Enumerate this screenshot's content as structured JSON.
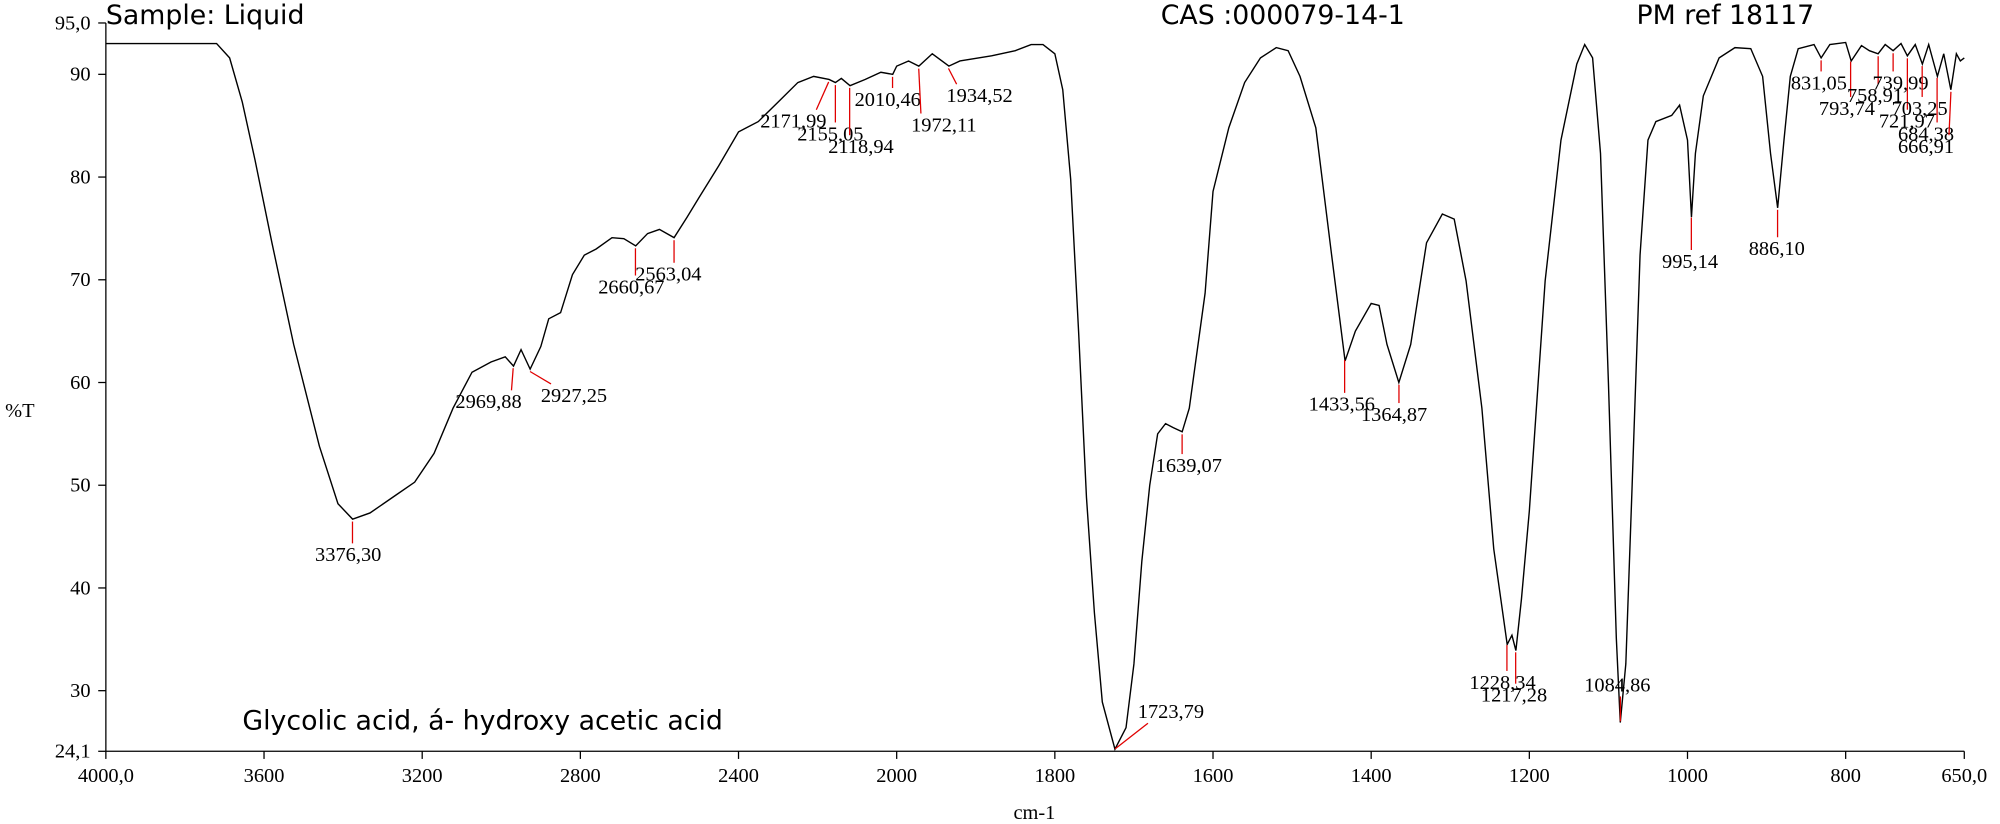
{
  "chart_data": {
    "type": "line",
    "sample": "Sample: Liquid",
    "cas": "CAS :000079-14-1",
    "ref": "PM ref 18117",
    "title": "Glycolic acid, á- hydroxy acetic acid",
    "xlabel": "cm-1",
    "ylabel": "%T",
    "xlim": [
      4000,
      650
    ],
    "x_scale_change": {
      "at": 2000,
      "ratio": 2
    },
    "xticks": [
      {
        "value": 4000,
        "label": "4000,0"
      },
      3600,
      3200,
      2800,
      2400,
      2000,
      1800,
      1600,
      1400,
      1200,
      1000,
      800,
      {
        "value": 650,
        "label": "650,0"
      }
    ],
    "ylim": [
      24.1,
      95
    ],
    "yticks": [
      {
        "value": 24.1,
        "label": "24,1"
      },
      30,
      40,
      50,
      60,
      70,
      80,
      90,
      {
        "value": 95,
        "label": "95,0"
      }
    ],
    "color": "#000000",
    "peak_color": "#e00000",
    "x": [
      4000,
      3720,
      3687,
      3655,
      3623,
      3580,
      3525,
      3460,
      3413,
      3376,
      3332,
      3268,
      3219,
      3170,
      3122,
      3074,
      3026,
      2990,
      2969,
      2950,
      2927,
      2900,
      2880,
      2850,
      2820,
      2790,
      2760,
      2720,
      2690,
      2660,
      2630,
      2600,
      2563,
      2530,
      2500,
      2450,
      2400,
      2350,
      2300,
      2250,
      2210,
      2171,
      2155,
      2140,
      2118,
      2080,
      2040,
      2010,
      2000,
      1985,
      1972,
      1955,
      1934,
      1920,
      1880,
      1850,
      1830,
      1815,
      1800,
      1790,
      1780,
      1770,
      1760,
      1750,
      1740,
      1724,
      1710,
      1700,
      1690,
      1680,
      1670,
      1660,
      1650,
      1639,
      1630,
      1610,
      1600,
      1580,
      1560,
      1540,
      1520,
      1505,
      1490,
      1470,
      1450,
      1433,
      1420,
      1400,
      1390,
      1380,
      1365,
      1350,
      1330,
      1310,
      1295,
      1280,
      1260,
      1245,
      1228,
      1222,
      1217,
      1210,
      1200,
      1180,
      1160,
      1140,
      1130,
      1120,
      1110,
      1100,
      1090,
      1085,
      1078,
      1070,
      1060,
      1050,
      1040,
      1020,
      1010,
      1000,
      995,
      990,
      980,
      960,
      940,
      920,
      905,
      895,
      886,
      878,
      870,
      860,
      840,
      831,
      820,
      800,
      793,
      780,
      770,
      759,
      750,
      740,
      730,
      722,
      712,
      703,
      695,
      684,
      676,
      667,
      660,
      655,
      650
    ],
    "values": [
      93.0,
      93.0,
      91.6,
      87.3,
      81.7,
      73.6,
      63.7,
      53.8,
      48.2,
      46.7,
      47.3,
      49.0,
      50.3,
      53.1,
      57.5,
      61.0,
      62.0,
      62.5,
      61.6,
      63.2,
      61.3,
      63.5,
      66.2,
      66.8,
      70.5,
      72.4,
      73.0,
      74.1,
      74.0,
      73.3,
      74.5,
      74.9,
      74.1,
      76.1,
      78.0,
      81.1,
      84.4,
      85.4,
      87.3,
      89.2,
      89.8,
      89.5,
      89.2,
      89.6,
      88.9,
      89.5,
      90.2,
      90.0,
      90.8,
      91.3,
      90.8,
      92.0,
      90.8,
      91.3,
      91.8,
      92.3,
      92.9,
      92.9,
      92.0,
      88.5,
      79.8,
      65.0,
      48.8,
      37.6,
      28.9,
      24.3,
      26.4,
      32.6,
      42.6,
      50.0,
      55.0,
      56.0,
      55.6,
      55.2,
      57.5,
      68.7,
      78.6,
      84.8,
      89.2,
      91.6,
      92.6,
      92.3,
      89.8,
      84.8,
      72.4,
      62.1,
      65.0,
      67.7,
      67.5,
      63.7,
      60.0,
      63.7,
      73.6,
      76.4,
      75.9,
      69.9,
      57.5,
      43.8,
      34.5,
      35.4,
      33.9,
      38.9,
      47.5,
      69.9,
      83.6,
      91.0,
      92.9,
      91.6,
      82.3,
      60.0,
      35.1,
      26.9,
      32.6,
      50.0,
      72.4,
      83.6,
      85.4,
      86.0,
      87.0,
      83.6,
      76.1,
      82.3,
      87.9,
      91.6,
      92.6,
      92.5,
      89.8,
      82.3,
      77.0,
      83.6,
      89.8,
      92.5,
      92.9,
      91.6,
      92.9,
      93.1,
      91.3,
      92.8,
      92.3,
      92.0,
      92.9,
      92.3,
      93.0,
      91.8,
      92.9,
      91.0,
      92.9,
      89.8,
      92.0,
      88.5,
      92.0,
      91.3,
      91.6
    ],
    "peaks": [
      {
        "value": 3376.3,
        "label": "3376,30"
      },
      {
        "value": 2969.88,
        "label": "2969,88"
      },
      {
        "value": 2927.25,
        "label": "2927,25"
      },
      {
        "value": 2660.67,
        "label": "2660,67"
      },
      {
        "value": 2563.04,
        "label": "2563,04"
      },
      {
        "value": 2171.99,
        "label": "2171,99"
      },
      {
        "value": 2155.05,
        "label": "2155,05"
      },
      {
        "value": 2118.94,
        "label": "2118,94"
      },
      {
        "value": 2010.46,
        "label": "2010,46"
      },
      {
        "value": 1972.11,
        "label": "1972,11"
      },
      {
        "value": 1934.52,
        "label": "1934,52"
      },
      {
        "value": 1723.79,
        "label": "1723,79"
      },
      {
        "value": 1639.07,
        "label": "1639,07"
      },
      {
        "value": 1433.56,
        "label": "1433,56"
      },
      {
        "value": 1364.87,
        "label": "1364,87"
      },
      {
        "value": 1228.34,
        "label": "1228,34"
      },
      {
        "value": 1217.28,
        "label": "1217,28"
      },
      {
        "value": 1084.86,
        "label": "1084,86"
      },
      {
        "value": 995.14,
        "label": "995,14"
      },
      {
        "value": 886.1,
        "label": "886,10"
      },
      {
        "value": 831.05,
        "label": "831,05"
      },
      {
        "value": 793.74,
        "label": "793,74"
      },
      {
        "value": 758.91,
        "label": "758,91"
      },
      {
        "value": 739.99,
        "label": "739,99"
      },
      {
        "value": 721.97,
        "label": "721,97"
      },
      {
        "value": 703.25,
        "label": "703,25"
      },
      {
        "value": 684.38,
        "label": "684,38"
      },
      {
        "value": 666.91,
        "label": "666,91"
      }
    ]
  }
}
